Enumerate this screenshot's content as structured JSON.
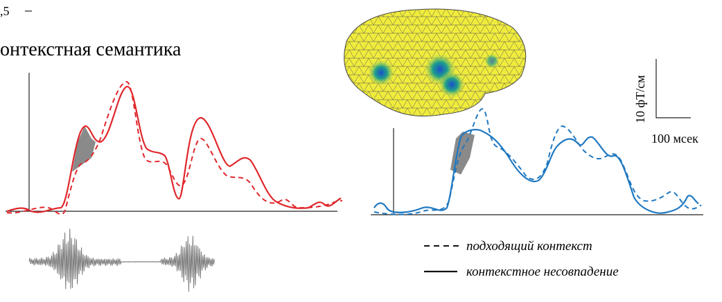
{
  "header": {
    "tick_fragment": ",5",
    "title": "онтекстная семантика"
  },
  "scale_bar": {
    "vertical": "10 фТ/см",
    "horizontal": "100 мсек"
  },
  "legend": {
    "dashed": "подходящий контекст",
    "solid": "контекстное несовпадение"
  }
}
